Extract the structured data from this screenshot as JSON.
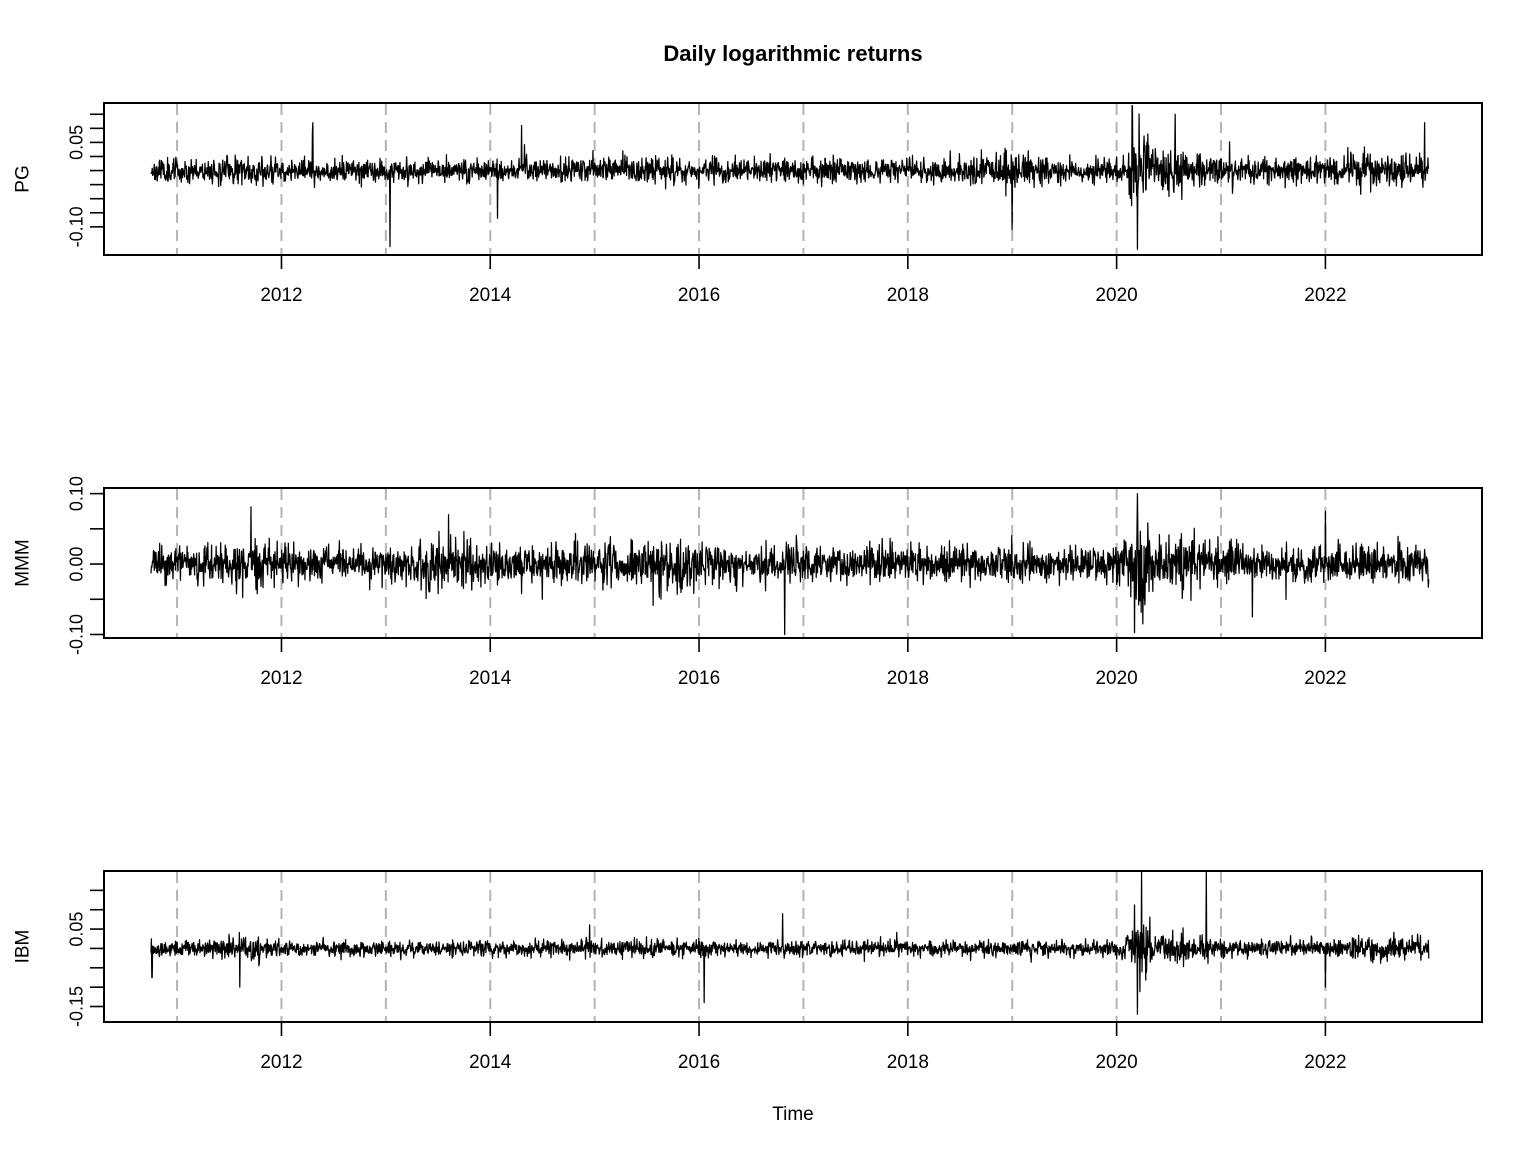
{
  "title": "Daily logarithmic returns",
  "xlabel": "Time",
  "chart_data": {
    "type": "line",
    "title": "Daily logarithmic returns",
    "xlabel": "Time",
    "x_range": [
      2010.75,
      2022.99
    ],
    "xlim": [
      2010.3,
      2023.5
    ],
    "x_ticks": [
      2012,
      2014,
      2016,
      2018,
      2020,
      2022
    ],
    "x_tick_labels": [
      "2012",
      "2014",
      "2016",
      "2018",
      "2020",
      "2022"
    ],
    "vertical_dashed_lines": [
      2011,
      2012,
      2013,
      2014,
      2015,
      2016,
      2017,
      2018,
      2019,
      2020,
      2021,
      2022
    ],
    "grid": false,
    "panels": [
      {
        "name": "PG",
        "ylabel": "PG",
        "ylim": [
          -0.15,
          0.12
        ],
        "y_ticks": [
          -0.1,
          -0.075,
          -0.05,
          -0.025,
          0.0,
          0.025,
          0.05,
          0.075,
          0.1
        ],
        "y_tick_labels": [
          "-0.10",
          "",
          "",
          "",
          "",
          "",
          "0.05",
          "",
          ""
        ],
        "base_vol": 0.01,
        "vol_events": [
          [
            2011.6,
            0.2,
            1.4
          ],
          [
            2015.7,
            0.4,
            1.3
          ],
          [
            2018.9,
            0.3,
            1.6
          ],
          [
            2020.22,
            0.12,
            4.0
          ],
          [
            2020.5,
            0.4,
            2.0
          ],
          [
            2022.5,
            0.5,
            1.6
          ]
        ],
        "spikes": [
          [
            2013.04,
            -0.135
          ],
          [
            2020.2,
            -0.14
          ],
          [
            2020.15,
            0.115
          ],
          [
            2014.3,
            0.08
          ],
          [
            2012.3,
            0.085
          ],
          [
            2019.0,
            -0.105
          ],
          [
            2022.95,
            0.085
          ],
          [
            2020.56,
            0.1
          ],
          [
            2014.07,
            -0.085
          ]
        ],
        "seed": 11
      },
      {
        "name": "MMM",
        "ylabel": "MMM",
        "ylim": [
          -0.105,
          0.108
        ],
        "y_ticks": [
          -0.1,
          -0.05,
          0.0,
          0.05,
          0.1
        ],
        "y_tick_labels": [
          "-0.10",
          "",
          "0.00",
          "",
          "0.10"
        ],
        "base_vol": 0.012,
        "vol_events": [
          [
            2011.7,
            0.3,
            1.4
          ],
          [
            2013.6,
            0.4,
            1.5
          ],
          [
            2015.6,
            0.6,
            1.5
          ],
          [
            2020.22,
            0.12,
            3.5
          ],
          [
            2020.6,
            0.5,
            1.5
          ]
        ],
        "spikes": [
          [
            2016.82,
            -0.1
          ],
          [
            2020.2,
            0.1
          ],
          [
            2020.25,
            -0.085
          ],
          [
            2013.6,
            0.07
          ],
          [
            2014.5,
            -0.05
          ],
          [
            2021.3,
            -0.075
          ],
          [
            2022.0,
            0.075
          ]
        ],
        "seed": 23
      },
      {
        "name": "IBM",
        "ylabel": "IBM",
        "ylim": [
          -0.19,
          0.2
        ],
        "y_ticks": [
          -0.15,
          -0.1,
          -0.05,
          0.0,
          0.05,
          0.1,
          0.15
        ],
        "y_tick_labels": [
          "-0.15",
          "",
          "",
          "",
          "0.05",
          "",
          ""
        ],
        "base_vol": 0.01,
        "vol_events": [
          [
            2011.6,
            0.3,
            1.6
          ],
          [
            2020.22,
            0.12,
            4.0
          ],
          [
            2020.5,
            0.3,
            1.8
          ],
          [
            2022.6,
            0.5,
            1.6
          ]
        ],
        "spikes": [
          [
            2020.2,
            -0.17
          ],
          [
            2020.24,
            0.2
          ],
          [
            2020.86,
            0.2
          ],
          [
            2016.05,
            -0.14
          ],
          [
            2011.6,
            -0.1
          ],
          [
            2010.76,
            -0.075
          ],
          [
            2016.8,
            0.09
          ],
          [
            2022.0,
            -0.1
          ]
        ],
        "seed": 37
      }
    ]
  }
}
